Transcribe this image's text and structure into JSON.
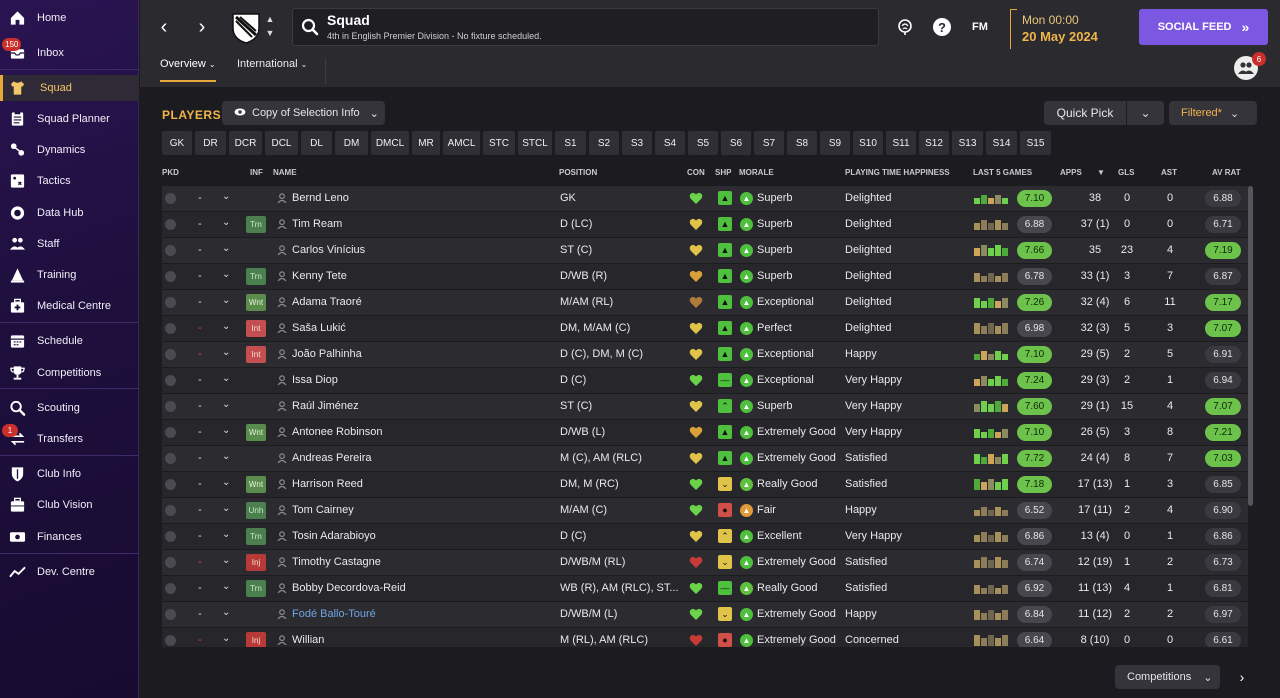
{
  "sidebar": {
    "items": [
      {
        "label": "Home",
        "icon": "home-icon",
        "badge": ""
      },
      {
        "label": "Inbox",
        "icon": "inbox-icon",
        "badge": "150"
      },
      {
        "label": "Squad",
        "icon": "shirt-icon",
        "badge": ""
      },
      {
        "label": "Squad Planner",
        "icon": "clipboard-icon",
        "badge": ""
      },
      {
        "label": "Dynamics",
        "icon": "people-link-icon",
        "badge": ""
      },
      {
        "label": "Tactics",
        "icon": "tactics-board-icon",
        "badge": ""
      },
      {
        "label": "Data Hub",
        "icon": "data-hub-icon",
        "badge": ""
      },
      {
        "label": "Staff",
        "icon": "staff-icon",
        "badge": ""
      },
      {
        "label": "Training",
        "icon": "training-cone-icon",
        "badge": ""
      },
      {
        "label": "Medical Centre",
        "icon": "medical-kit-icon",
        "badge": ""
      },
      {
        "label": "Schedule",
        "icon": "calendar-icon",
        "badge": ""
      },
      {
        "label": "Competitions",
        "icon": "trophy-icon",
        "badge": ""
      },
      {
        "label": "Scouting",
        "icon": "magnifier-icon",
        "badge": ""
      },
      {
        "label": "Transfers",
        "icon": "transfer-arrows-icon",
        "badge": "1"
      },
      {
        "label": "Club Info",
        "icon": "shield-icon",
        "badge": ""
      },
      {
        "label": "Club Vision",
        "icon": "briefcase-icon",
        "badge": ""
      },
      {
        "label": "Finances",
        "icon": "money-icon",
        "badge": ""
      },
      {
        "label": "Dev. Centre",
        "icon": "growth-chart-icon",
        "badge": ""
      }
    ]
  },
  "header": {
    "title": "Squad",
    "subtitle": "4th in English Premier Division - No fixture scheduled.",
    "fm_label": "FM",
    "time": "Mon 00:00",
    "date": "20 May 2024",
    "social_feed": "SOCIAL FEED",
    "tabs": [
      "Overview",
      "International"
    ],
    "people_badge": "6"
  },
  "toolbar": {
    "section_title": "PLAYERS",
    "copy_label": "Copy of Selection Info",
    "quick_pick": "Quick Pick",
    "filtered": "Filtered*"
  },
  "positions": [
    "GK",
    "DR",
    "DCR",
    "DCL",
    "DL",
    "DM",
    "DMCL",
    "MR",
    "AMCL",
    "STC",
    "STCL",
    "S1",
    "S2",
    "S3",
    "S4",
    "S5",
    "S6",
    "S7",
    "S8",
    "S9",
    "S10",
    "S11",
    "S12",
    "S13",
    "S14",
    "S15"
  ],
  "columns": {
    "pkd": "PKD",
    "inf": "INF",
    "name": "NAME",
    "position": "POSITION",
    "con": "CON",
    "shp": "SHP",
    "morale": "MORALE",
    "pth": "PLAYING TIME HAPPINESS",
    "last5": "LAST 5 GAMES",
    "apps": "APPS",
    "gls": "GLS",
    "ast": "AST",
    "avrat": "AV RAT"
  },
  "players": [
    {
      "name": "Bernd Leno",
      "inf": "",
      "pos": "GK",
      "con": "green",
      "shp": "green",
      "morale": "Superb",
      "pth": "Delighted",
      "last5": "7.10",
      "apps": "38",
      "gls": "0",
      "ast": "0",
      "av": "6.88",
      "dash": "-"
    },
    {
      "name": "Tim Ream",
      "inf": "Trn",
      "pos": "D (LC)",
      "con": "yellow",
      "shp": "green",
      "morale": "Superb",
      "pth": "Delighted",
      "last5": "6.88",
      "apps": "37 (1)",
      "gls": "0",
      "ast": "0",
      "av": "6.71",
      "dash": "-"
    },
    {
      "name": "Carlos Vinícius",
      "inf": "",
      "pos": "ST (C)",
      "con": "yellow",
      "shp": "green",
      "morale": "Superb",
      "pth": "Delighted",
      "last5": "7.66",
      "apps": "35",
      "gls": "23",
      "ast": "4",
      "av": "7.19",
      "dash": "-"
    },
    {
      "name": "Kenny Tete",
      "inf": "Trn",
      "pos": "D/WB (R)",
      "con": "orange",
      "shp": "green",
      "morale": "Superb",
      "pth": "Delighted",
      "last5": "6.78",
      "apps": "33 (1)",
      "gls": "3",
      "ast": "7",
      "av": "6.87",
      "dash": "-"
    },
    {
      "name": "Adama Traoré",
      "inf": "Wnt",
      "pos": "M/AM (RL)",
      "con": "brown",
      "shp": "green",
      "morale": "Exceptional",
      "pth": "Delighted",
      "last5": "7.26",
      "apps": "32 (4)",
      "gls": "6",
      "ast": "11",
      "av": "7.17",
      "dash": "-"
    },
    {
      "name": "Saša Lukić",
      "inf": "Int",
      "pos": "DM, M/AM (C)",
      "con": "yellow",
      "shp": "green",
      "morale": "Perfect",
      "pth": "Delighted",
      "last5": "6.98",
      "apps": "32 (3)",
      "gls": "5",
      "ast": "3",
      "av": "7.07",
      "dash": "-"
    },
    {
      "name": "João Palhinha",
      "inf": "Int",
      "pos": "D (C), DM, M (C)",
      "con": "yellow",
      "shp": "green",
      "morale": "Exceptional",
      "pth": "Happy",
      "last5": "7.10",
      "apps": "29 (5)",
      "gls": "2",
      "ast": "5",
      "av": "6.91",
      "dash": "-"
    },
    {
      "name": "Issa Diop",
      "inf": "",
      "pos": "D (C)",
      "con": "green",
      "shp": "green-minus",
      "morale": "Exceptional",
      "pth": "Very Happy",
      "last5": "7.24",
      "apps": "29 (3)",
      "gls": "2",
      "ast": "1",
      "av": "6.94",
      "dash": "-"
    },
    {
      "name": "Raúl Jiménez",
      "inf": "",
      "pos": "ST (C)",
      "con": "yellow",
      "shp": "green-up",
      "morale": "Superb",
      "pth": "Very Happy",
      "last5": "7.60",
      "apps": "29 (1)",
      "gls": "15",
      "ast": "4",
      "av": "7.07",
      "dash": "-"
    },
    {
      "name": "Antonee Robinson",
      "inf": "Wnt",
      "pos": "D/WB (L)",
      "con": "orange",
      "shp": "green",
      "morale": "Extremely Good",
      "pth": "Very Happy",
      "last5": "7.10",
      "apps": "26 (5)",
      "gls": "3",
      "ast": "8",
      "av": "7.21",
      "dash": "-"
    },
    {
      "name": "Andreas Pereira",
      "inf": "",
      "pos": "M (C), AM (RLC)",
      "con": "yellow",
      "shp": "green",
      "morale": "Extremely Good",
      "pth": "Satisfied",
      "last5": "7.72",
      "apps": "24 (4)",
      "gls": "8",
      "ast": "7",
      "av": "7.03",
      "dash": "-"
    },
    {
      "name": "Harrison Reed",
      "inf": "Wnt",
      "pos": "DM, M (RC)",
      "con": "green",
      "shp": "yellow-down",
      "morale": "Really Good",
      "pth": "Satisfied",
      "last5": "7.18",
      "apps": "17 (13)",
      "gls": "1",
      "ast": "3",
      "av": "6.85",
      "dash": "-"
    },
    {
      "name": "Tom Cairney",
      "inf": "Unh",
      "pos": "M/AM (C)",
      "con": "green",
      "shp": "red",
      "morale": "Fair",
      "pth": "Happy",
      "last5": "6.52",
      "apps": "17 (11)",
      "gls": "2",
      "ast": "4",
      "av": "6.90",
      "dash": "-"
    },
    {
      "name": "Tosin Adarabioyo",
      "inf": "Trn",
      "pos": "D (C)",
      "con": "yellow",
      "shp": "yellow-up",
      "morale": "Excellent",
      "pth": "Very Happy",
      "last5": "6.86",
      "apps": "13 (4)",
      "gls": "0",
      "ast": "1",
      "av": "6.86",
      "dash": "-"
    },
    {
      "name": "Timothy Castagne",
      "inf": "Inj",
      "pos": "D/WB/M (RL)",
      "con": "red",
      "shp": "yellow-down",
      "morale": "Extremely Good",
      "pth": "Satisfied",
      "last5": "6.74",
      "apps": "12 (19)",
      "gls": "1",
      "ast": "2",
      "av": "6.73",
      "dash": "-"
    },
    {
      "name": "Bobby Decordova-Reid",
      "inf": "Trn",
      "pos": "WB (R), AM (RLC), ST...",
      "con": "green",
      "shp": "green-minus",
      "morale": "Really Good",
      "pth": "Satisfied",
      "last5": "6.92",
      "apps": "11 (13)",
      "gls": "4",
      "ast": "1",
      "av": "6.81",
      "dash": "-"
    },
    {
      "name": "Fodé Ballo-Touré",
      "inf": "",
      "pos": "D/WB/M (L)",
      "con": "green",
      "shp": "yellow-down",
      "morale": "Extremely Good",
      "pth": "Happy",
      "last5": "6.84",
      "apps": "11 (12)",
      "gls": "2",
      "ast": "2",
      "av": "6.97",
      "dash": "-",
      "link": true
    },
    {
      "name": "Willian",
      "inf": "Inj",
      "pos": "M (RL), AM (RLC)",
      "con": "red",
      "shp": "red",
      "morale": "Extremely Good",
      "pth": "Concerned",
      "last5": "6.64",
      "apps": "8 (10)",
      "gls": "0",
      "ast": "0",
      "av": "6.61",
      "dash": "-"
    }
  ],
  "footer": {
    "competitions": "Competitions"
  },
  "colors": {
    "accent": "#f0b54a",
    "social": "#7b57e2",
    "rating_high": "#6cc24a"
  }
}
